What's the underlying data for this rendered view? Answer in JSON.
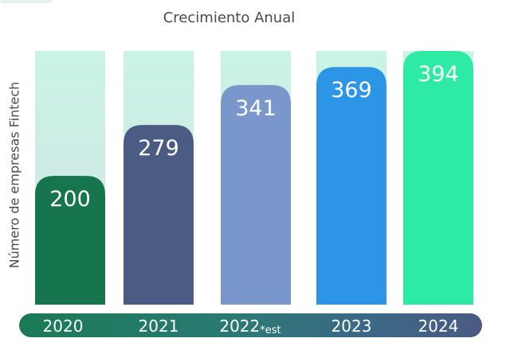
{
  "chart_data": {
    "type": "bar",
    "title": "Crecimiento Anual",
    "ylabel": "Número de empresas Fintech",
    "xlabel": "",
    "categories": [
      "2020",
      "2021",
      "2022",
      "2023",
      "2024"
    ],
    "category_notes": [
      "",
      "",
      "*est",
      "",
      ""
    ],
    "values": [
      200,
      279,
      341,
      369,
      394
    ],
    "ylim": [
      0,
      394
    ],
    "colors": [
      "#17754d",
      "#4a5c83",
      "#7a97cb",
      "#2c95e6",
      "#2deba4"
    ],
    "grid": false,
    "legend": "none"
  }
}
